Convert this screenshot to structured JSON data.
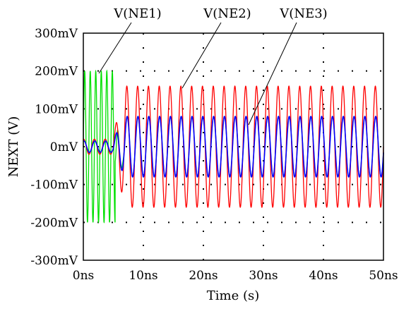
{
  "chart_data": {
    "type": "line",
    "xlabel": "Time (s)",
    "ylabel": "NEXT (V)",
    "xlim": [
      0,
      50
    ],
    "ylim": [
      -300,
      300
    ],
    "x_unit": "ns",
    "y_unit": "mV",
    "x_ticks": [
      0,
      10,
      20,
      30,
      40,
      50
    ],
    "x_tick_labels": [
      "0ns",
      "10ns",
      "20ns",
      "30ns",
      "40ns",
      "50ns"
    ],
    "y_ticks": [
      300,
      200,
      100,
      0,
      -100,
      -200,
      -300
    ],
    "y_tick_labels": [
      "300mV",
      "200mV",
      "100mV",
      "0mV",
      "-100mV",
      "-200mV",
      "-300mV"
    ],
    "grid": "dotted",
    "series": [
      {
        "name": "V(NE1)",
        "color": "#00e000",
        "description_points": [
          [
            0,
            0
          ],
          [
            0.3,
            200
          ],
          [
            0.7,
            -200
          ],
          [
            1.2,
            200
          ],
          [
            1.6,
            -200
          ],
          [
            2.1,
            200
          ],
          [
            2.5,
            -200
          ],
          [
            3.0,
            200
          ],
          [
            3.4,
            -200
          ],
          [
            3.9,
            200
          ],
          [
            4.3,
            -200
          ],
          [
            4.8,
            200
          ],
          [
            5.2,
            -200
          ],
          [
            6.0,
            30
          ],
          [
            6.8,
            70
          ],
          [
            7.6,
            -80
          ],
          [
            50,
            -80
          ]
        ],
        "steady_amplitude": 80,
        "period": 1.8
      },
      {
        "name": "V(NE2)",
        "color": "#ff0000",
        "steady_amplitude": 160,
        "period": 1.8,
        "initial_amplitude": 20
      },
      {
        "name": "V(NE3)",
        "color": "#0000ff",
        "steady_amplitude": 80,
        "period": 1.8,
        "initial_amplitude": 15
      }
    ]
  }
}
